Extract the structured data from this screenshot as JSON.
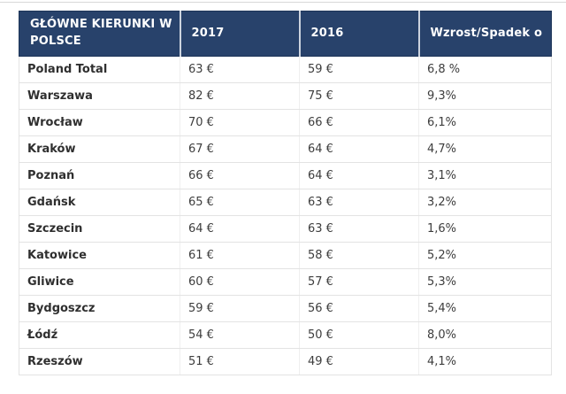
{
  "page": {
    "background": "#ffffff",
    "top_rule_color": "#d8d8d8"
  },
  "table": {
    "colors": {
      "header_bg": "#28426B",
      "header_text": "#ffffff",
      "header_divider": "#ccd3de",
      "header_outline": "#1d3458",
      "row_border": "#e3e3e3",
      "column_border": "#efefef",
      "city_text": "#2f2f2f",
      "value_text": "#3d3d3d"
    },
    "columns": [
      {
        "key": "city",
        "label": "GŁÓWNE KIERUNKI W POLSCE"
      },
      {
        "key": "y2017",
        "label": "2017"
      },
      {
        "key": "y2016",
        "label": "2016"
      },
      {
        "key": "change",
        "label": "Wzrost/Spadek o"
      }
    ],
    "rows": [
      {
        "city": "Poland Total",
        "y2017": "63 €",
        "y2016": "59 €",
        "change": "6,8 %"
      },
      {
        "city": "Warszawa",
        "y2017": "82 €",
        "y2016": "75 €",
        "change": "9,3%"
      },
      {
        "city": "Wrocław",
        "y2017": "70 €",
        "y2016": "66 €",
        "change": "6,1%"
      },
      {
        "city": "Kraków",
        "y2017": "67 €",
        "y2016": "64 €",
        "change": "4,7%"
      },
      {
        "city": "Poznań",
        "y2017": "66 €",
        "y2016": "64 €",
        "change": "3,1%"
      },
      {
        "city": "Gdańsk",
        "y2017": "65 €",
        "y2016": "63 €",
        "change": "3,2%"
      },
      {
        "city": "Szczecin",
        "y2017": "64 €",
        "y2016": "63 €",
        "change": "1,6%"
      },
      {
        "city": "Katowice",
        "y2017": "61 €",
        "y2016": "58 €",
        "change": "5,2%"
      },
      {
        "city": "Gliwice",
        "y2017": "60 €",
        "y2016": "57 €",
        "change": "5,3%"
      },
      {
        "city": "Bydgoszcz",
        "y2017": "59 €",
        "y2016": "56 €",
        "change": "5,4%"
      },
      {
        "city": "Łódź",
        "y2017": "54 €",
        "y2016": "50 €",
        "change": "8,0%"
      },
      {
        "city": "Rzeszów",
        "y2017": "51 €",
        "y2016": "49 €",
        "change": "4,1%"
      }
    ]
  }
}
